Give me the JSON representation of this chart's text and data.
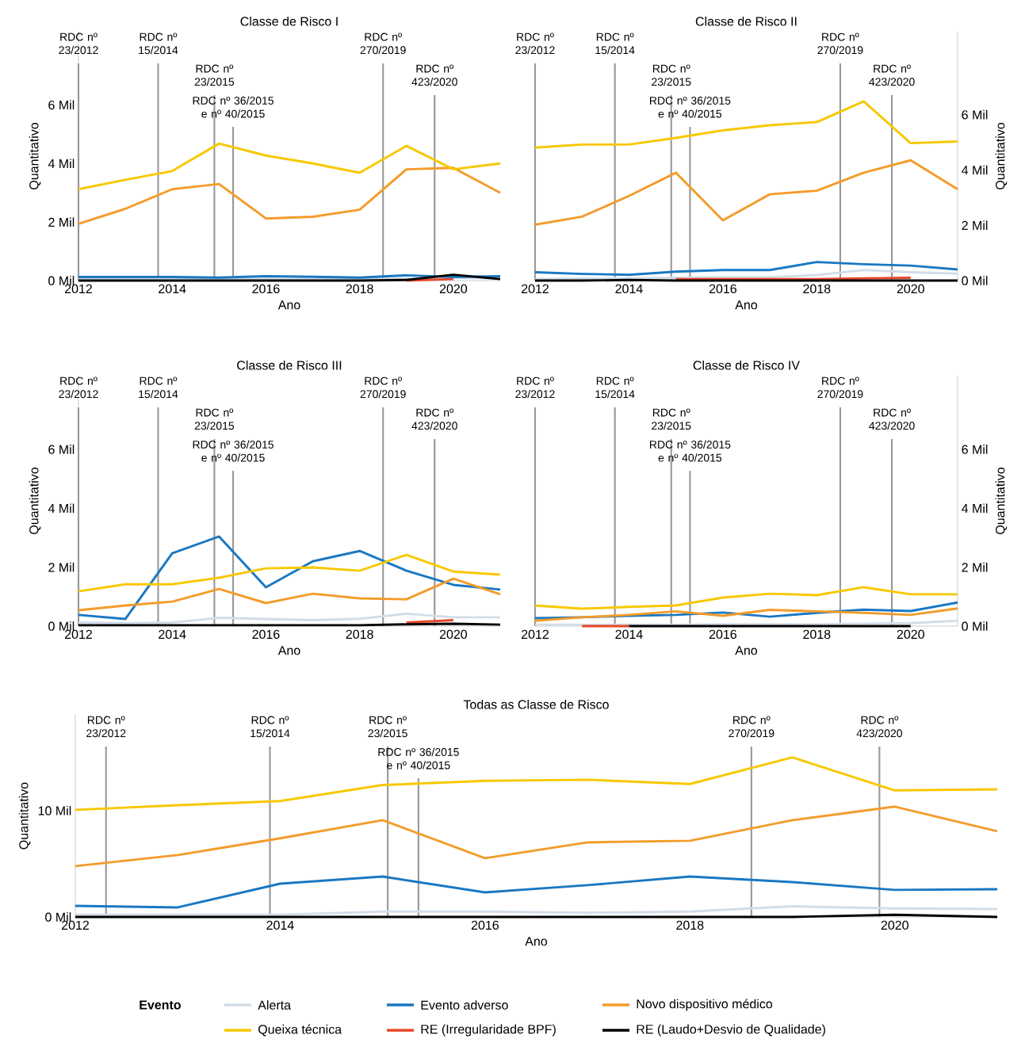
{
  "chart_data": [
    {
      "type": "line",
      "title": "Classe de Risco I",
      "xlabel": "Ano",
      "ylabel": "Quantitativo",
      "x": [
        2012,
        2013,
        2014,
        2015,
        2016,
        2017,
        2018,
        2019,
        2020,
        2021
      ],
      "xlim": [
        2012,
        2021
      ],
      "xticks": [
        2012,
        2014,
        2016,
        2018,
        2020
      ],
      "ylim": [
        0,
        8.5
      ],
      "yticks": [
        {
          "value": 0,
          "label": "0 Mil"
        },
        {
          "value": 2,
          "label": "2 Mil"
        },
        {
          "value": 4,
          "label": "4 Mil"
        },
        {
          "value": 6,
          "label": "6 Mil"
        }
      ],
      "ref_lines": [
        {
          "axis": "x",
          "value": 2012.0,
          "label": "RDC nº 23/2012",
          "color": "#999999"
        },
        {
          "axis": "x",
          "value": 2013.7,
          "label": "RDC nº 15/2014",
          "color": "#999999"
        },
        {
          "axis": "x",
          "value": 2014.9,
          "label": "RDC nº 23/2015",
          "color": "#999999"
        },
        {
          "axis": "x",
          "value": 2015.3,
          "label": "RDC nº 36/2015 e nº 40/2015",
          "color": "#999999"
        },
        {
          "axis": "x",
          "value": 2018.5,
          "label": "RDC nº 270/2019",
          "color": "#999999"
        },
        {
          "axis": "x",
          "value": 2019.6,
          "label": "RDC nº 423/2020",
          "color": "#999999"
        }
      ],
      "series": [
        {
          "color": "#d3dde8",
          "values": [
            0.04,
            0.05,
            0.05,
            0.05,
            0.05,
            0.05,
            0.05,
            0.06,
            0.1,
            0.06
          ]
        },
        {
          "color": "#1a78c2",
          "values": [
            0.12,
            0.12,
            0.12,
            0.1,
            0.15,
            0.13,
            0.1,
            0.18,
            0.12,
            0.15
          ]
        },
        {
          "color": "#f39c2a",
          "values": [
            1.94,
            2.45,
            3.12,
            3.3,
            2.12,
            2.18,
            2.42,
            3.8,
            3.85,
            3.0
          ]
        },
        {
          "color": "#f7c800",
          "values": [
            3.12,
            3.44,
            3.74,
            4.68,
            4.27,
            4.0,
            3.68,
            4.6,
            3.8,
            4.0
          ]
        },
        {
          "color": "#e8472a",
          "values": [
            null,
            null,
            null,
            null,
            null,
            null,
            null,
            0,
            0.05,
            null
          ]
        },
        {
          "color": "#000000",
          "values": [
            0,
            0,
            0,
            0,
            0,
            0,
            0,
            0.02,
            0.2,
            0.05
          ]
        }
      ]
    },
    {
      "type": "line",
      "title": "Classe de Risco II",
      "xlabel": "Ano",
      "ylabel": "Quantitativo",
      "x": [
        2012,
        2013,
        2014,
        2015,
        2016,
        2017,
        2018,
        2019,
        2020,
        2021
      ],
      "xlim": [
        2012,
        2021
      ],
      "xticks": [
        2012,
        2014,
        2016,
        2018,
        2020
      ],
      "ylim": [
        0,
        9
      ],
      "yticks": [
        {
          "value": 0,
          "label": "0 Mil"
        },
        {
          "value": 2,
          "label": "2 Mil"
        },
        {
          "value": 4,
          "label": "4 Mil"
        },
        {
          "value": 6,
          "label": "6 Mil"
        }
      ],
      "ref_lines": [
        {
          "axis": "x",
          "value": 2012.0,
          "label": "RDC nº 23/2012",
          "color": "#999999"
        },
        {
          "axis": "x",
          "value": 2013.7,
          "label": "RDC nº 15/2014",
          "color": "#999999"
        },
        {
          "axis": "x",
          "value": 2014.9,
          "label": "RDC nº 23/2015",
          "color": "#999999"
        },
        {
          "axis": "x",
          "value": 2015.3,
          "label": "RDC nº 36/2015 e nº 40/2015",
          "color": "#999999"
        },
        {
          "axis": "x",
          "value": 2018.5,
          "label": "RDC nº 270/2019",
          "color": "#999999"
        },
        {
          "axis": "x",
          "value": 2019.6,
          "label": "RDC nº 423/2020",
          "color": "#999999"
        }
      ],
      "series": [
        {
          "color": "#d3dde8",
          "values": [
            0.05,
            0.07,
            0.08,
            0.1,
            0.12,
            0.12,
            0.2,
            0.38,
            0.3,
            0.25
          ]
        },
        {
          "color": "#1a78c2",
          "values": [
            0.3,
            0.24,
            0.21,
            0.32,
            0.38,
            0.38,
            0.67,
            0.59,
            0.54,
            0.4
          ]
        },
        {
          "color": "#f39c2a",
          "values": [
            2.02,
            2.31,
            3.06,
            3.9,
            2.18,
            3.12,
            3.25,
            3.9,
            4.35,
            3.3
          ]
        },
        {
          "color": "#f7c800",
          "values": [
            4.81,
            4.92,
            4.92,
            5.16,
            5.43,
            5.62,
            5.73,
            6.48,
            4.97,
            5.03
          ]
        },
        {
          "color": "#e8472a",
          "values": [
            null,
            null,
            null,
            0.05,
            0.05,
            0.05,
            0.05,
            0.08,
            0.1,
            null
          ]
        },
        {
          "color": "#000000",
          "values": [
            0,
            0,
            0.02,
            0,
            0,
            0,
            0,
            0,
            0,
            0
          ]
        }
      ]
    },
    {
      "type": "line",
      "title": "Classe de Risco III",
      "xlabel": "Ano",
      "ylabel": "Quantitativo",
      "x": [
        2012,
        2013,
        2014,
        2015,
        2016,
        2017,
        2018,
        2019,
        2020,
        2021
      ],
      "xlim": [
        2012,
        2021
      ],
      "xticks": [
        2012,
        2014,
        2016,
        2018,
        2020
      ],
      "ylim": [
        0,
        8.5
      ],
      "yticks": [
        {
          "value": 0,
          "label": "0 Mil"
        },
        {
          "value": 2,
          "label": "2 Mil"
        },
        {
          "value": 4,
          "label": "4 Mil"
        },
        {
          "value": 6,
          "label": "6 Mil"
        }
      ],
      "ref_lines": [
        {
          "axis": "x",
          "value": 2012.0,
          "label": "RDC nº 23/2012",
          "color": "#999999"
        },
        {
          "axis": "x",
          "value": 2013.7,
          "label": "RDC nº 15/2014",
          "color": "#999999"
        },
        {
          "axis": "x",
          "value": 2014.9,
          "label": "RDC nº 23/2015",
          "color": "#999999"
        },
        {
          "axis": "x",
          "value": 2015.3,
          "label": "RDC nº 36/2015 e nº 40/2015",
          "color": "#999999"
        },
        {
          "axis": "x",
          "value": 2018.5,
          "label": "RDC nº 270/2019",
          "color": "#999999"
        },
        {
          "axis": "x",
          "value": 2019.6,
          "label": "RDC nº 423/2020",
          "color": "#999999"
        }
      ],
      "series": [
        {
          "color": "#d3dde8",
          "values": [
            0.12,
            0.1,
            0.12,
            0.28,
            0.24,
            0.2,
            0.25,
            0.42,
            0.3,
            0.3
          ]
        },
        {
          "color": "#1a78c2",
          "values": [
            0.38,
            0.24,
            2.47,
            3.04,
            1.32,
            2.2,
            2.55,
            1.88,
            1.4,
            1.24
          ]
        },
        {
          "color": "#f39c2a",
          "values": [
            0.54,
            0.7,
            0.83,
            1.26,
            0.78,
            1.1,
            0.94,
            0.91,
            1.61,
            1.08
          ]
        },
        {
          "color": "#f7c800",
          "values": [
            1.18,
            1.42,
            1.42,
            1.64,
            1.96,
            1.99,
            1.88,
            2.42,
            1.85,
            1.75
          ]
        },
        {
          "color": "#e8472a",
          "values": [
            null,
            null,
            null,
            null,
            null,
            null,
            null,
            0.12,
            0.2,
            null
          ]
        },
        {
          "color": "#000000",
          "values": [
            0.03,
            0.03,
            0.03,
            0.03,
            0.03,
            0.03,
            0.03,
            0.06,
            0.08,
            0.05
          ]
        }
      ]
    },
    {
      "type": "line",
      "title": "Classe de Risco IV",
      "xlabel": "Ano",
      "ylabel": "Quantitativo",
      "x": [
        2012,
        2013,
        2014,
        2015,
        2016,
        2017,
        2018,
        2019,
        2020,
        2021
      ],
      "xlim": [
        2012,
        2021
      ],
      "xticks": [
        2012,
        2014,
        2016,
        2018,
        2020
      ],
      "ylim": [
        0,
        8.5
      ],
      "yticks": [
        {
          "value": 0,
          "label": "0 Mil"
        },
        {
          "value": 2,
          "label": "2 Mil"
        },
        {
          "value": 4,
          "label": "4 Mil"
        },
        {
          "value": 6,
          "label": "6 Mil"
        }
      ],
      "ref_lines": [
        {
          "axis": "x",
          "value": 2012.0,
          "label": "RDC nº 23/2012",
          "color": "#999999"
        },
        {
          "axis": "x",
          "value": 2013.7,
          "label": "RDC nº 15/2014",
          "color": "#999999"
        },
        {
          "axis": "x",
          "value": 2014.9,
          "label": "RDC nº 23/2015",
          "color": "#999999"
        },
        {
          "axis": "x",
          "value": 2015.3,
          "label": "RDC nº 36/2015 e nº 40/2015",
          "color": "#999999"
        },
        {
          "axis": "x",
          "value": 2018.5,
          "label": "RDC nº 270/2019",
          "color": "#999999"
        },
        {
          "axis": "x",
          "value": 2019.6,
          "label": "RDC nº 423/2020",
          "color": "#999999"
        }
      ],
      "series": [
        {
          "color": "#d3dde8",
          "values": [
            0.05,
            0.05,
            0.05,
            0.05,
            0.06,
            0.06,
            0.06,
            0.08,
            0.1,
            0.18
          ]
        },
        {
          "color": "#1a78c2",
          "values": [
            0.27,
            0.3,
            0.35,
            0.38,
            0.46,
            0.32,
            0.45,
            0.56,
            0.51,
            0.8
          ]
        },
        {
          "color": "#f39c2a",
          "values": [
            0.18,
            0.3,
            0.38,
            0.5,
            0.35,
            0.55,
            0.5,
            0.45,
            0.38,
            0.6
          ]
        },
        {
          "color": "#f7c800",
          "values": [
            0.7,
            0.59,
            0.65,
            0.7,
            0.97,
            1.1,
            1.05,
            1.32,
            1.08,
            1.08
          ]
        },
        {
          "color": "#e8472a",
          "values": [
            null,
            0,
            0,
            null,
            null,
            null,
            null,
            null,
            null,
            null
          ]
        },
        {
          "color": "#000000",
          "values": [
            null,
            null,
            0,
            0,
            0,
            0,
            0,
            0,
            0,
            null
          ]
        }
      ]
    },
    {
      "type": "line",
      "title": "Todas as Classe de Risco",
      "xlabel": "Ano",
      "ylabel": "Quantitativo",
      "x": [
        2012,
        2013,
        2014,
        2015,
        2016,
        2017,
        2018,
        2019,
        2020,
        2021
      ],
      "xlim": [
        2012,
        2021
      ],
      "xticks": [
        2012,
        2014,
        2016,
        2018,
        2020
      ],
      "ylim": [
        0,
        19
      ],
      "yticks": [
        {
          "value": 0,
          "label": "0 Mil"
        },
        {
          "value": 10,
          "label": "10 Mil"
        }
      ],
      "ref_lines": [
        {
          "axis": "x",
          "value": 2012.3,
          "label": "RDC nº 23/2012",
          "color": "#999999"
        },
        {
          "axis": "x",
          "value": 2013.9,
          "label": "RDC nº 15/2014",
          "color": "#999999"
        },
        {
          "axis": "x",
          "value": 2015.05,
          "label": "RDC nº 23/2015",
          "color": "#999999"
        },
        {
          "axis": "x",
          "value": 2015.35,
          "label": "RDC nº 36/2015 e nº 40/2015",
          "color": "#999999"
        },
        {
          "axis": "x",
          "value": 2018.6,
          "label": "RDC nº 270/2019",
          "color": "#999999"
        },
        {
          "axis": "x",
          "value": 2019.85,
          "label": "RDC nº 423/2020",
          "color": "#999999"
        }
      ],
      "legend": "bottom",
      "legend_title": "Evento",
      "series": [
        {
          "name": "Alerta",
          "color": "#d3dde8",
          "values": [
            0.2,
            0.2,
            0.2,
            0.5,
            0.5,
            0.4,
            0.5,
            1.0,
            0.8,
            0.75
          ]
        },
        {
          "name": "Evento adverso",
          "color": "#1a78c2",
          "values": [
            1.04,
            0.9,
            3.13,
            3.8,
            2.31,
            2.99,
            3.8,
            3.28,
            2.54,
            2.61
          ]
        },
        {
          "name": "Novo dispositivo médico",
          "color": "#f39c2a",
          "values": [
            4.78,
            5.82,
            7.39,
            9.1,
            5.52,
            7.01,
            7.16,
            9.1,
            10.37,
            8.06
          ]
        },
        {
          "name": "Queixa técnica",
          "color": "#f7c800",
          "values": [
            10.07,
            10.5,
            10.9,
            12.4,
            12.8,
            12.9,
            12.5,
            15.0,
            11.9,
            12.0
          ]
        },
        {
          "name": "RE (Irregularidade BPF)",
          "color": "#e8472a",
          "values": [
            null,
            null,
            null,
            null,
            null,
            null,
            null,
            null,
            null,
            null
          ]
        },
        {
          "name": "RE (Laudo+Desvio de Qualidade)",
          "color": "#000000",
          "values": [
            0,
            0,
            0,
            0,
            0,
            0,
            0,
            0,
            0.2,
            0
          ]
        }
      ]
    }
  ]
}
